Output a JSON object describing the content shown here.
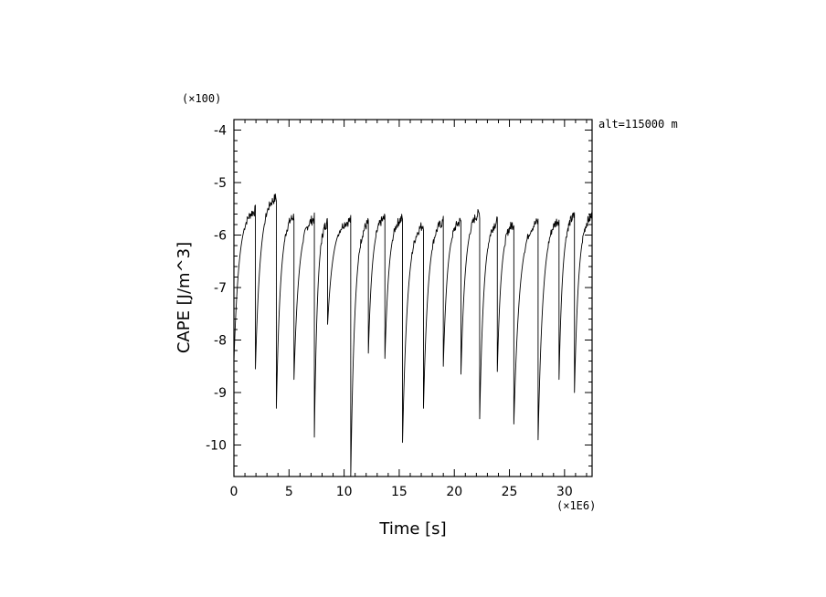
{
  "chart_data": {
    "type": "line",
    "title": "",
    "xlabel": "Time [s]",
    "ylabel": "CAPE [J/m^3]",
    "x_multiplier_label": "(×1E6)",
    "y_multiplier_label": "(×100)",
    "annotation": "alt=115000 m",
    "xlim": [
      0,
      32.5
    ],
    "ylim": [
      -10.6,
      -3.8
    ],
    "x_ticks": [
      0,
      5,
      10,
      15,
      20,
      25,
      30
    ],
    "x_tick_labels": [
      "0",
      "5",
      "10",
      "15",
      "20",
      "25",
      "30"
    ],
    "y_ticks": [
      -4,
      -5,
      -6,
      -7,
      -8,
      -9,
      -10
    ],
    "y_tick_labels": [
      "-4",
      "-5",
      "-6",
      "-7",
      "-8",
      "-9",
      "-10"
    ],
    "grid": false,
    "line_color": "#000000",
    "series": [
      {
        "name": "",
        "cycles": [
          {
            "t0": 0.0,
            "t1": 1.95,
            "min": -8.4,
            "top": -5.5
          },
          {
            "t0": 1.95,
            "t1": 3.85,
            "min": -8.55,
            "top": -5.25
          },
          {
            "t0": 3.85,
            "t1": 5.45,
            "min": -9.3,
            "top": -5.6
          },
          {
            "t0": 5.45,
            "t1": 7.3,
            "min": -8.75,
            "top": -5.65
          },
          {
            "t0": 7.3,
            "t1": 8.5,
            "min": -9.85,
            "top": -5.7
          },
          {
            "t0": 8.5,
            "t1": 10.6,
            "min": -7.7,
            "top": -5.7
          },
          {
            "t0": 10.6,
            "t1": 12.2,
            "min": -10.6,
            "top": -5.7
          },
          {
            "t0": 12.2,
            "t1": 13.7,
            "min": -8.25,
            "top": -5.65
          },
          {
            "t0": 13.7,
            "t1": 15.3,
            "min": -8.35,
            "top": -5.65
          },
          {
            "t0": 15.3,
            "t1": 17.2,
            "min": -9.95,
            "top": -5.75
          },
          {
            "t0": 17.2,
            "t1": 19.0,
            "min": -9.3,
            "top": -5.7
          },
          {
            "t0": 19.0,
            "t1": 20.6,
            "min": -8.5,
            "top": -5.7
          },
          {
            "t0": 20.6,
            "t1": 22.3,
            "min": -8.65,
            "top": -5.55
          },
          {
            "t0": 22.3,
            "t1": 23.9,
            "min": -9.5,
            "top": -5.7
          },
          {
            "t0": 23.9,
            "t1": 25.4,
            "min": -8.6,
            "top": -5.75
          },
          {
            "t0": 25.4,
            "t1": 27.6,
            "min": -9.6,
            "top": -5.7
          },
          {
            "t0": 27.6,
            "t1": 29.5,
            "min": -9.9,
            "top": -5.65
          },
          {
            "t0": 29.5,
            "t1": 30.9,
            "min": -8.75,
            "top": -5.6
          },
          {
            "t0": 30.9,
            "t1": 32.5,
            "min": -9.0,
            "top": -5.6
          }
        ]
      }
    ]
  }
}
